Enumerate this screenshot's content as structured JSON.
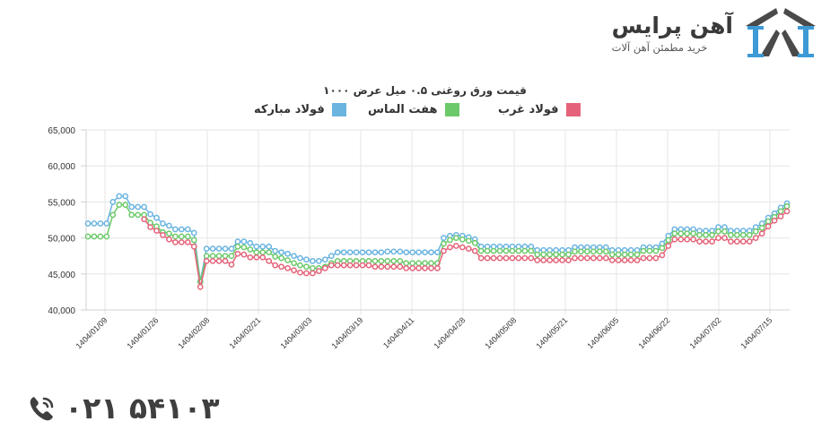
{
  "brand": {
    "name": "آهن پرایس",
    "tagline": "خرید مطمئن آهن آلات",
    "logo_colors": {
      "dark": "#4a4a4a",
      "blue": "#3d9ad6"
    }
  },
  "footer": {
    "phone": "۰۲۱ ۵۴۱۰۳",
    "phone_icon": "phone-icon"
  },
  "chart_data": {
    "type": "line",
    "title": "قیمت ورق روغنی ۰.۵ میل عرض ۱۰۰۰",
    "xlabel": "",
    "ylabel": "",
    "ylim": [
      40000,
      65000
    ],
    "yticks": [
      "40,000",
      "45,000",
      "50,000",
      "55,000",
      "60,000",
      "65,000"
    ],
    "ytick_values": [
      40000,
      45000,
      50000,
      55000,
      60000,
      65000
    ],
    "categories_ticks": [
      "1404/01/09",
      "1404/01/26",
      "1404/02/08",
      "1404/02/21",
      "1404/03/03",
      "1404/03/19",
      "1404/04/11",
      "1404/04/28",
      "1404/05/08",
      "1404/05/21",
      "1404/06/05",
      "1404/06/22",
      "1404/07/02",
      "1404/07/15"
    ],
    "grid": true,
    "legend_position": "top",
    "marker": "hollow-circle",
    "series": [
      {
        "name": "فولاد مبارکه",
        "color": "#6ab4e0",
        "values": [
          52000,
          52000,
          52000,
          52000,
          55000,
          55800,
          55800,
          54300,
          54300,
          54300,
          53300,
          52800,
          52000,
          51700,
          51200,
          51200,
          51200,
          50700,
          44000,
          48500,
          48500,
          48500,
          48500,
          48500,
          49500,
          49500,
          49300,
          48800,
          48800,
          48800,
          48200,
          48000,
          47800,
          47500,
          47200,
          47000,
          46800,
          46800,
          47000,
          47500,
          48000,
          48000,
          48000,
          48000,
          48000,
          48000,
          48000,
          48000,
          48100,
          48100,
          48100,
          48000,
          48000,
          48000,
          48000,
          48000,
          48000,
          50000,
          50300,
          50400,
          50300,
          50100,
          49800,
          48800,
          48800,
          48800,
          48800,
          48800,
          48800,
          48800,
          48800,
          48800,
          48300,
          48300,
          48300,
          48300,
          48300,
          48300,
          48700,
          48700,
          48700,
          48700,
          48700,
          48700,
          48300,
          48300,
          48300,
          48300,
          48300,
          48700,
          48700,
          48700,
          49200,
          50300,
          51200,
          51200,
          51200,
          51200,
          51000,
          51000,
          51000,
          51500,
          51500,
          51000,
          51000,
          51000,
          51000,
          51500,
          52000,
          52800,
          53400,
          54200,
          54800
        ]
      },
      {
        "name": "هفت الماس",
        "color": "#6cc96a",
        "values": [
          50200,
          50200,
          50200,
          50200,
          53200,
          54600,
          54600,
          53200,
          53200,
          53200,
          52100,
          51600,
          50800,
          50600,
          50200,
          50200,
          50200,
          49700,
          43900,
          47500,
          47500,
          47500,
          47500,
          47500,
          48800,
          48700,
          48400,
          48000,
          48000,
          48000,
          47400,
          47200,
          46900,
          46500,
          46200,
          46000,
          45800,
          45800,
          46000,
          46500,
          46800,
          46800,
          46800,
          46800,
          46800,
          46800,
          46800,
          46800,
          46800,
          46800,
          46800,
          46500,
          46500,
          46500,
          46500,
          46500,
          46500,
          49200,
          49700,
          50000,
          49800,
          49600,
          49300,
          48200,
          48200,
          48200,
          48200,
          48200,
          48200,
          48200,
          48200,
          48200,
          47700,
          47700,
          47700,
          47700,
          47700,
          47700,
          48100,
          48100,
          48100,
          48100,
          48100,
          48100,
          47700,
          47700,
          47700,
          47700,
          47700,
          48200,
          48200,
          48200,
          48600,
          49700,
          50600,
          50600,
          50600,
          50600,
          50400,
          50400,
          50400,
          50900,
          50900,
          50400,
          50400,
          50400,
          50400,
          50900,
          51400,
          52300,
          52900,
          53700,
          54400
        ]
      },
      {
        "name": "فولاد غرب",
        "color": "#e5637a",
        "values": [
          null,
          null,
          null,
          null,
          null,
          null,
          null,
          null,
          null,
          52600,
          51500,
          51000,
          50400,
          49800,
          49400,
          49400,
          49400,
          48800,
          43200,
          46800,
          46800,
          46800,
          46800,
          46300,
          47800,
          47700,
          47300,
          47300,
          47300,
          46800,
          46200,
          46000,
          45800,
          45500,
          45200,
          45100,
          45100,
          45400,
          45800,
          46200,
          46200,
          46200,
          46200,
          46200,
          46200,
          46200,
          46000,
          46000,
          46000,
          46000,
          46000,
          45800,
          45800,
          45800,
          45800,
          45800,
          45800,
          48200,
          48700,
          48900,
          48700,
          48500,
          48200,
          47200,
          47200,
          47200,
          47200,
          47200,
          47200,
          47200,
          47200,
          47200,
          46900,
          46900,
          46900,
          46900,
          46900,
          46900,
          47200,
          47200,
          47200,
          47200,
          47200,
          47200,
          46900,
          46900,
          46900,
          46900,
          46900,
          47200,
          47200,
          47200,
          47600,
          48900,
          49800,
          49800,
          49800,
          49800,
          49500,
          49500,
          49500,
          50000,
          50000,
          49500,
          49500,
          49500,
          49500,
          50000,
          50600,
          51600,
          52400,
          53000,
          53700
        ]
      }
    ]
  }
}
